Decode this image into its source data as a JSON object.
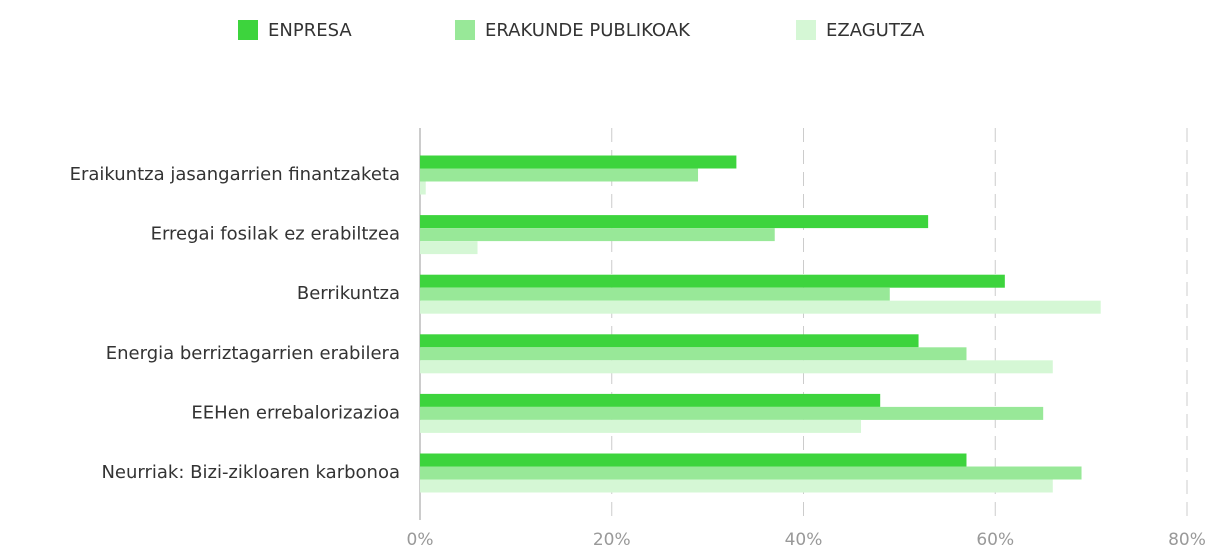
{
  "chart_data": {
    "type": "hbar",
    "categories": [
      "Eraikuntza jasangarrien finantzaketa",
      "Erregai fosilak ez erabiltzea",
      "Berrikuntza",
      "Energia berriztagarrien erabilera",
      "EEHen errebalorizazioa",
      "Neurriak: Bizi-zikloaren karbonoa"
    ],
    "series": [
      {
        "name": "ENPRESA",
        "color": "#3dd43d",
        "values": [
          33,
          53,
          61,
          52,
          48,
          57
        ]
      },
      {
        "name": "ERAKUNDE PUBLIKOAK",
        "color": "#98e898",
        "values": [
          29,
          37,
          49,
          57,
          65,
          69
        ]
      },
      {
        "name": "EZAGUTZA",
        "color": "#d5f7d5",
        "values": [
          0.6,
          6,
          71,
          66,
          46,
          66
        ]
      }
    ],
    "xlim": [
      0,
      80
    ],
    "xticks": [
      {
        "value": 0,
        "label": "0%"
      },
      {
        "value": 20,
        "label": "20%"
      },
      {
        "value": 40,
        "label": "40%"
      },
      {
        "value": 60,
        "label": "60%"
      },
      {
        "value": 80,
        "label": "80%"
      }
    ],
    "grid": true,
    "legend": "top"
  }
}
